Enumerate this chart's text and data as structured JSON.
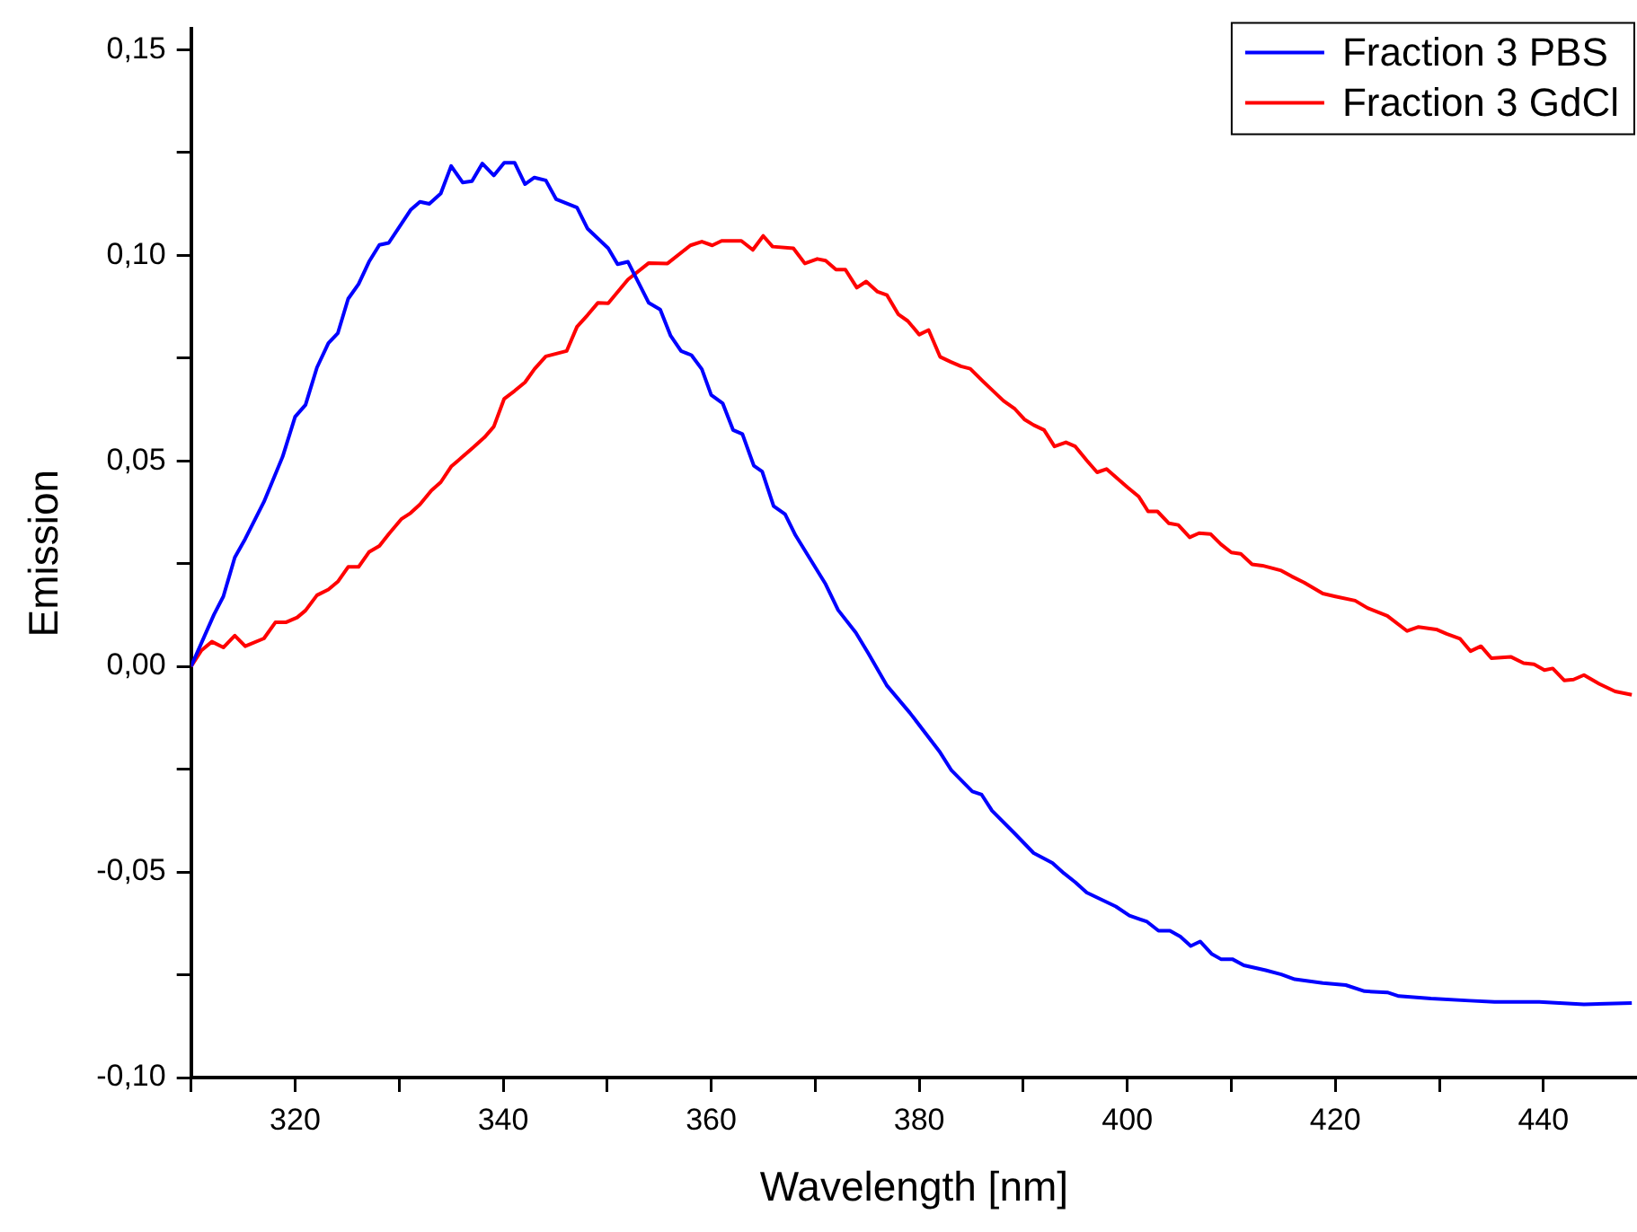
{
  "chart_data": {
    "type": "line",
    "xlabel": "Wavelength [nm]",
    "ylabel": "Emission",
    "legend": "top right",
    "marker": "none",
    "line_style": "solid",
    "xlim": [
      310,
      449
    ],
    "ylim": [
      -0.1,
      0.155
    ],
    "xticks": [
      {
        "value": 310,
        "label": null
      },
      320,
      {
        "value": 330,
        "label": null
      },
      340,
      {
        "value": 350,
        "label": null
      },
      360,
      {
        "value": 370,
        "label": null
      },
      380,
      {
        "value": 390,
        "label": null
      },
      400,
      {
        "value": 410,
        "label": null
      },
      420,
      {
        "value": 430,
        "label": null
      },
      440
    ],
    "yticks": [
      {
        "value": -0.1,
        "label": "-0,10"
      },
      {
        "value": -0.075,
        "label": null
      },
      {
        "value": -0.05,
        "label": "-0,05"
      },
      {
        "value": -0.025,
        "label": null
      },
      {
        "value": 0,
        "label": "0,00"
      },
      {
        "value": 0.025,
        "label": null
      },
      {
        "value": 0.05,
        "label": "0,05"
      },
      {
        "value": 0.075,
        "label": null
      },
      {
        "value": 0.1,
        "label": "0,10"
      },
      {
        "value": 0.125,
        "label": null
      },
      {
        "value": 0.15,
        "label": "0,15"
      }
    ],
    "series": [
      {
        "name": "Fraction 3 PBS",
        "color": "#0000ff",
        "x": [
          310,
          312.2,
          313.1,
          314.2,
          315.2,
          317,
          318.8,
          320,
          321,
          322.1,
          323.2,
          324.1,
          325.1,
          326.1,
          327.1,
          328.1,
          329,
          331.1,
          332,
          332.9,
          334,
          335,
          336.1,
          337,
          338,
          339.1,
          340.1,
          341.1,
          342.1,
          343,
          344.1,
          345.1,
          347.1,
          348.1,
          350.1,
          351,
          352,
          354,
          355.1,
          356.1,
          357.1,
          358.1,
          359.1,
          360,
          361.1,
          362.1,
          363,
          364.1,
          364.9,
          366,
          367.1,
          368.1,
          371,
          372.2,
          373.9,
          375.1,
          376.9,
          379.1,
          382,
          383.1,
          385.1,
          386,
          387,
          389.2,
          391,
          392.8,
          393.9,
          395,
          396.1,
          398.9,
          400.2,
          401.9,
          403,
          404.1,
          405.1,
          406.1,
          407,
          408.1,
          409,
          410.1,
          411.2,
          413.3,
          414.8,
          416.1,
          418.8,
          421,
          422.8,
          425,
          426.1,
          429.2,
          432.9,
          435.3,
          439.6,
          443.9,
          448.5
        ],
        "values": [
          0,
          0.0126,
          0.017,
          0.0265,
          0.031,
          0.04,
          0.051,
          0.0607,
          0.0636,
          0.0727,
          0.0786,
          0.081,
          0.0894,
          0.093,
          0.0984,
          0.1025,
          0.103,
          0.111,
          0.113,
          0.1125,
          0.115,
          0.1217,
          0.1177,
          0.118,
          0.1223,
          0.1194,
          0.1225,
          0.1225,
          0.1173,
          0.1189,
          0.1182,
          0.1136,
          0.1116,
          0.1065,
          0.1017,
          0.0978,
          0.0984,
          0.0884,
          0.0868,
          0.0804,
          0.0767,
          0.0757,
          0.0723,
          0.066,
          0.064,
          0.0575,
          0.0565,
          0.0488,
          0.0474,
          0.039,
          0.037,
          0.0319,
          0.02,
          0.0137,
          0.0082,
          0.0032,
          -0.0047,
          -0.0113,
          -0.0209,
          -0.0253,
          -0.0304,
          -0.0312,
          -0.0351,
          -0.0407,
          -0.0454,
          -0.0478,
          -0.0503,
          -0.0525,
          -0.055,
          -0.0584,
          -0.0606,
          -0.0621,
          -0.0643,
          -0.0643,
          -0.0657,
          -0.068,
          -0.0669,
          -0.0699,
          -0.0712,
          -0.0712,
          -0.0727,
          -0.0739,
          -0.0749,
          -0.0761,
          -0.077,
          -0.0775,
          -0.079,
          -0.0793,
          -0.0802,
          -0.0808,
          -0.0813,
          -0.0816,
          -0.0816,
          -0.0822,
          -0.0819
        ]
      },
      {
        "name": "Fraction 3 GdCl",
        "color": "#ff0000",
        "x": [
          310,
          311,
          312,
          313.1,
          314.2,
          315.2,
          317,
          318.1,
          319.1,
          320.2,
          321,
          322.1,
          323.2,
          324.1,
          325.1,
          326.1,
          327.1,
          328.1,
          329,
          330.2,
          331.1,
          332,
          333.1,
          334,
          335,
          336.1,
          337.1,
          338.2,
          339.1,
          340.1,
          341.1,
          342.1,
          343,
          344.1,
          346.1,
          347.1,
          348.1,
          349.1,
          350.1,
          352,
          354,
          355.8,
          358,
          359.1,
          360.1,
          361,
          362.9,
          364,
          365,
          365.9,
          367.9,
          369,
          370.2,
          371,
          372,
          372.9,
          374,
          374.9,
          376,
          376.9,
          378,
          378.9,
          380,
          380.9,
          382,
          383,
          384,
          384.9,
          386.1,
          387.1,
          388.1,
          389.2,
          390.1,
          391,
          392,
          393,
          394.1,
          395,
          396.1,
          397.1,
          398,
          400,
          401.1,
          402,
          402.9,
          404,
          404.9,
          406,
          406.9,
          408,
          409,
          410,
          410.9,
          412,
          413,
          414.8,
          415.8,
          417,
          418.8,
          420,
          421.9,
          423.1,
          425,
          426.9,
          428,
          429.7,
          430.7,
          432,
          433,
          434,
          435,
          436.9,
          438.1,
          439.1,
          440.1,
          440.9,
          442,
          442.9,
          443.9,
          445.4,
          446.9,
          448.5
        ],
        "values": [
          0,
          0.0039,
          0.006,
          0.0046,
          0.0075,
          0.0049,
          0.0068,
          0.0107,
          0.0107,
          0.0119,
          0.0136,
          0.0173,
          0.0187,
          0.0206,
          0.0242,
          0.0242,
          0.0278,
          0.0293,
          0.0322,
          0.0358,
          0.0373,
          0.0394,
          0.0428,
          0.0448,
          0.0486,
          0.051,
          0.0532,
          0.0557,
          0.0583,
          0.0651,
          0.067,
          0.0691,
          0.0723,
          0.0754,
          0.0767,
          0.0826,
          0.0854,
          0.0884,
          0.0883,
          0.0941,
          0.0981,
          0.098,
          0.1024,
          0.1033,
          0.1024,
          0.1035,
          0.1035,
          0.1013,
          0.1047,
          0.1021,
          0.1017,
          0.098,
          0.0991,
          0.0987,
          0.0965,
          0.0965,
          0.0921,
          0.0936,
          0.0911,
          0.0903,
          0.0856,
          0.084,
          0.0807,
          0.0818,
          0.0753,
          0.0741,
          0.073,
          0.0724,
          0.0694,
          0.067,
          0.0646,
          0.0626,
          0.0601,
          0.0587,
          0.0575,
          0.0535,
          0.0545,
          0.0535,
          0.0501,
          0.0472,
          0.048,
          0.0436,
          0.0413,
          0.0377,
          0.0377,
          0.0348,
          0.0344,
          0.0314,
          0.0324,
          0.0322,
          0.0297,
          0.0277,
          0.0274,
          0.0248,
          0.0245,
          0.0233,
          0.0219,
          0.0204,
          0.0177,
          0.017,
          0.016,
          0.0142,
          0.0123,
          0.0086,
          0.0096,
          0.009,
          0.0079,
          0.0067,
          0.0037,
          0.0049,
          0.002,
          0.0023,
          0.0008,
          0.0005,
          -0.0009,
          -0.0005,
          -0.0034,
          -0.0032,
          -0.0021,
          -0.0043,
          -0.0061,
          -0.0069
        ]
      }
    ]
  }
}
